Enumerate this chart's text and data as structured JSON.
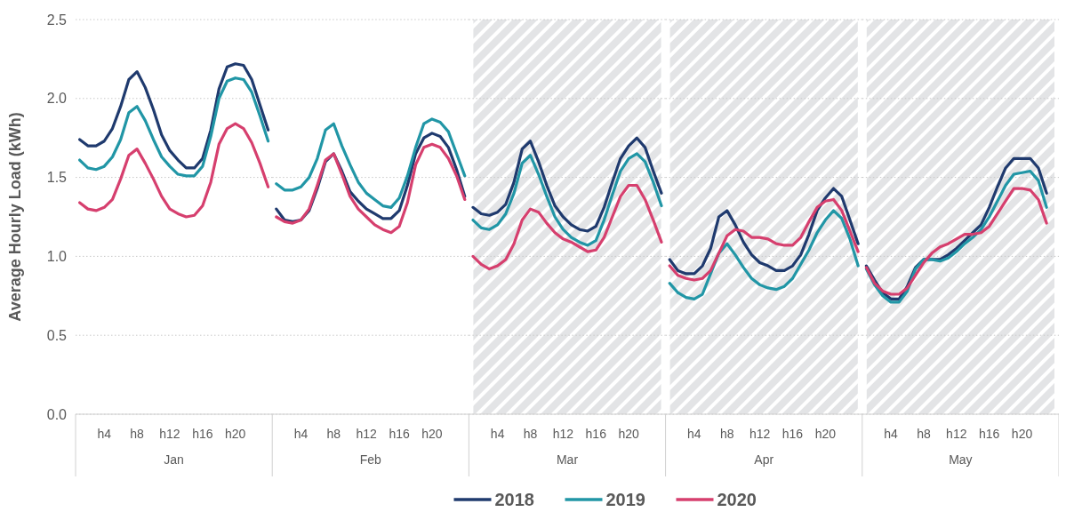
{
  "chart_data": [
    {
      "type": "line",
      "xlabel": "Jan",
      "ylabel": "Average Hourly Load (kWh)",
      "categories": [
        null,
        null,
        null,
        "h4",
        null,
        null,
        null,
        "h8",
        null,
        null,
        null,
        "h12",
        null,
        null,
        null,
        "h16",
        null,
        null,
        null,
        "h20",
        null,
        null,
        null,
        null
      ],
      "ylim": [
        0,
        2.5
      ],
      "yticks": [
        {
          "value": 0,
          "label": "0.0"
        },
        {
          "value": 0.5,
          "label": "0.5"
        },
        {
          "value": 1,
          "label": "1.0"
        },
        {
          "value": 1.5,
          "label": "1.5"
        },
        {
          "value": 2,
          "label": "2.0"
        },
        {
          "value": 2.5,
          "label": "2.5"
        }
      ],
      "grid": "y",
      "legend": "bottom",
      "series": [
        {
          "name": "2018",
          "color": "#1f3a6e",
          "values": [
            1.74,
            1.7,
            1.7,
            1.73,
            1.81,
            1.95,
            2.12,
            2.17,
            2.07,
            1.93,
            1.77,
            1.67,
            1.61,
            1.56,
            1.56,
            1.62,
            1.8,
            2.06,
            2.2,
            2.22,
            2.21,
            2.12,
            1.96,
            1.8
          ]
        },
        {
          "name": "2019",
          "color": "#2196a6",
          "values": [
            1.61,
            1.56,
            1.55,
            1.57,
            1.63,
            1.74,
            1.91,
            1.95,
            1.86,
            1.74,
            1.63,
            1.57,
            1.52,
            1.51,
            1.51,
            1.57,
            1.76,
            2.0,
            2.11,
            2.13,
            2.12,
            2.04,
            1.89,
            1.73
          ]
        },
        {
          "name": "2020",
          "color": "#d63f6e",
          "values": [
            1.34,
            1.3,
            1.29,
            1.31,
            1.36,
            1.49,
            1.64,
            1.68,
            1.59,
            1.49,
            1.38,
            1.3,
            1.27,
            1.25,
            1.26,
            1.32,
            1.47,
            1.71,
            1.81,
            1.84,
            1.81,
            1.72,
            1.59,
            1.44
          ]
        }
      ]
    },
    {
      "type": "line",
      "xlabel": "Feb",
      "categories": [
        null,
        null,
        null,
        "h4",
        null,
        null,
        null,
        "h8",
        null,
        null,
        null,
        "h12",
        null,
        null,
        null,
        "h16",
        null,
        null,
        null,
        "h20",
        null,
        null,
        null,
        null
      ],
      "ylim": [
        0,
        2.5
      ],
      "yticks": [
        0,
        0.5,
        1,
        1.5,
        2,
        2.5
      ],
      "grid": "y",
      "tick_labels": "x",
      "series": [
        {
          "color": "#1f3a6e",
          "values": [
            1.3,
            1.23,
            1.22,
            1.23,
            1.29,
            1.43,
            1.6,
            1.65,
            1.54,
            1.41,
            1.35,
            1.3,
            1.27,
            1.24,
            1.24,
            1.29,
            1.45,
            1.65,
            1.75,
            1.78,
            1.76,
            1.69,
            1.55,
            1.38
          ]
        },
        {
          "color": "#2196a6",
          "values": [
            1.46,
            1.42,
            1.42,
            1.44,
            1.5,
            1.62,
            1.8,
            1.84,
            1.7,
            1.58,
            1.47,
            1.4,
            1.36,
            1.32,
            1.31,
            1.37,
            1.51,
            1.69,
            1.84,
            1.87,
            1.85,
            1.79,
            1.65,
            1.51
          ]
        },
        {
          "color": "#d63f6e",
          "values": [
            1.25,
            1.22,
            1.21,
            1.23,
            1.3,
            1.45,
            1.61,
            1.65,
            1.52,
            1.38,
            1.3,
            1.25,
            1.2,
            1.17,
            1.15,
            1.19,
            1.34,
            1.58,
            1.69,
            1.71,
            1.69,
            1.62,
            1.51,
            1.36
          ]
        }
      ]
    },
    {
      "type": "line",
      "xlabel": "Mar",
      "categories": [
        null,
        null,
        null,
        "h4",
        null,
        null,
        null,
        "h8",
        null,
        null,
        null,
        "h12",
        null,
        null,
        null,
        "h16",
        null,
        null,
        null,
        "h20",
        null,
        null,
        null,
        null
      ],
      "ylim": [
        0,
        2.5
      ],
      "yticks": [
        0,
        0.5,
        1,
        1.5,
        2,
        2.5
      ],
      "grid": "y",
      "tick_labels": "x",
      "bands": [
        {
          "axis": "y",
          "from": 0,
          "to": 2.5,
          "color": "#e3e4e6"
        }
      ],
      "series": [
        {
          "color": "#1f3a6e",
          "values": [
            1.31,
            1.27,
            1.26,
            1.28,
            1.33,
            1.47,
            1.68,
            1.73,
            1.6,
            1.45,
            1.32,
            1.25,
            1.2,
            1.17,
            1.16,
            1.19,
            1.31,
            1.47,
            1.62,
            1.7,
            1.75,
            1.69,
            1.54,
            1.4
          ]
        },
        {
          "color": "#2196a6",
          "values": [
            1.23,
            1.18,
            1.17,
            1.2,
            1.27,
            1.4,
            1.59,
            1.64,
            1.52,
            1.38,
            1.25,
            1.17,
            1.12,
            1.09,
            1.07,
            1.1,
            1.23,
            1.39,
            1.54,
            1.62,
            1.65,
            1.6,
            1.47,
            1.32
          ]
        },
        {
          "color": "#d63f6e",
          "values": [
            1.0,
            0.95,
            0.92,
            0.94,
            0.98,
            1.08,
            1.23,
            1.3,
            1.28,
            1.21,
            1.15,
            1.11,
            1.09,
            1.06,
            1.03,
            1.04,
            1.12,
            1.25,
            1.38,
            1.45,
            1.45,
            1.36,
            1.23,
            1.09
          ]
        }
      ]
    },
    {
      "type": "line",
      "xlabel": "Apr",
      "categories": [
        null,
        null,
        null,
        "h4",
        null,
        null,
        null,
        "h8",
        null,
        null,
        null,
        "h12",
        null,
        null,
        null,
        "h16",
        null,
        null,
        null,
        "h20",
        null,
        null,
        null,
        null
      ],
      "ylim": [
        0,
        2.5
      ],
      "yticks": [
        0,
        0.5,
        1,
        1.5,
        2,
        2.5
      ],
      "grid": "y",
      "tick_labels": "x",
      "bands": [
        {
          "axis": "y",
          "from": 0,
          "to": 2.5,
          "color": "#e3e4e6"
        }
      ],
      "series": [
        {
          "color": "#1f3a6e",
          "values": [
            0.98,
            0.91,
            0.89,
            0.89,
            0.94,
            1.05,
            1.25,
            1.29,
            1.2,
            1.09,
            1.01,
            0.96,
            0.94,
            0.91,
            0.91,
            0.94,
            1.01,
            1.14,
            1.29,
            1.37,
            1.43,
            1.38,
            1.23,
            1.08
          ]
        },
        {
          "color": "#2196a6",
          "values": [
            0.83,
            0.77,
            0.74,
            0.73,
            0.76,
            0.89,
            1.02,
            1.08,
            1.01,
            0.93,
            0.86,
            0.82,
            0.8,
            0.79,
            0.81,
            0.86,
            0.95,
            1.04,
            1.15,
            1.23,
            1.29,
            1.24,
            1.11,
            0.94
          ]
        },
        {
          "color": "#d63f6e",
          "values": [
            0.94,
            0.88,
            0.86,
            0.85,
            0.86,
            0.91,
            1.02,
            1.13,
            1.17,
            1.16,
            1.12,
            1.12,
            1.11,
            1.08,
            1.07,
            1.07,
            1.12,
            1.22,
            1.31,
            1.35,
            1.36,
            1.29,
            1.16,
            1.03
          ]
        }
      ]
    },
    {
      "type": "line",
      "xlabel": "May",
      "categories": [
        null,
        null,
        null,
        "h4",
        null,
        null,
        null,
        "h8",
        null,
        null,
        null,
        "h12",
        null,
        null,
        null,
        "h16",
        null,
        null,
        null,
        "h20",
        null,
        null,
        null,
        null
      ],
      "ylim": [
        0,
        2.5
      ],
      "yticks": [
        0,
        0.5,
        1,
        1.5,
        2,
        2.5
      ],
      "grid": "y",
      "tick_labels": "x",
      "bands": [
        {
          "axis": "y",
          "from": 0,
          "to": 2.5,
          "color": "#e3e4e6"
        }
      ],
      "series": [
        {
          "color": "#1f3a6e",
          "values": [
            0.94,
            0.85,
            0.77,
            0.73,
            0.73,
            0.81,
            0.93,
            0.98,
            0.98,
            0.98,
            1.01,
            1.05,
            1.1,
            1.15,
            1.2,
            1.31,
            1.44,
            1.56,
            1.62,
            1.62,
            1.62,
            1.56,
            1.4,
            null
          ]
        },
        {
          "color": "#2196a6",
          "values": [
            0.92,
            0.82,
            0.75,
            0.71,
            0.71,
            0.78,
            0.92,
            0.98,
            0.98,
            0.97,
            0.99,
            1.03,
            1.08,
            1.12,
            1.17,
            1.25,
            1.35,
            1.45,
            1.52,
            1.53,
            1.54,
            1.48,
            1.31,
            null
          ]
        },
        {
          "color": "#d63f6e",
          "values": [
            0.93,
            0.83,
            0.78,
            0.76,
            0.76,
            0.8,
            0.88,
            0.96,
            1.02,
            1.06,
            1.08,
            1.11,
            1.14,
            1.14,
            1.15,
            1.19,
            1.27,
            1.35,
            1.43,
            1.43,
            1.42,
            1.36,
            1.21,
            null
          ]
        }
      ]
    }
  ]
}
